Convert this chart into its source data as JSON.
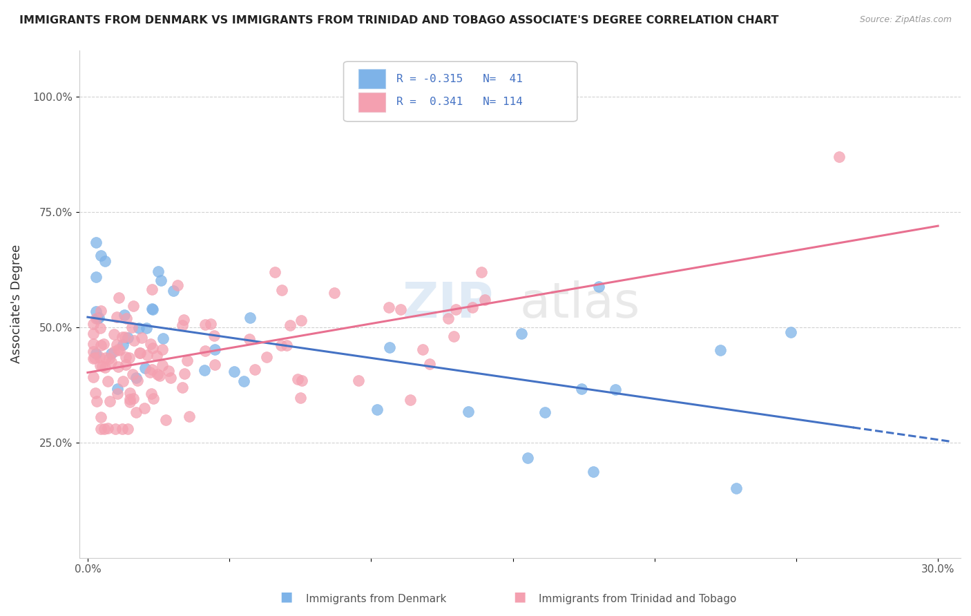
{
  "title": "IMMIGRANTS FROM DENMARK VS IMMIGRANTS FROM TRINIDAD AND TOBAGO ASSOCIATE'S DEGREE CORRELATION CHART",
  "source": "Source: ZipAtlas.com",
  "ylabel": "Associate's Degree",
  "xlabel": "",
  "legend_label1": "Immigrants from Denmark",
  "legend_label2": "Immigrants from Trinidad and Tobago",
  "R1": -0.315,
  "N1": 41,
  "R2": 0.341,
  "N2": 114,
  "color1": "#7EB3E8",
  "color2": "#F4A0B0",
  "trendline1_color": "#4472C4",
  "trendline2_color": "#E87090",
  "watermark_zip": "ZIP",
  "watermark_atlas": "atlas",
  "background_color": "#FFFFFF",
  "grid_color": "#CCCCCC"
}
